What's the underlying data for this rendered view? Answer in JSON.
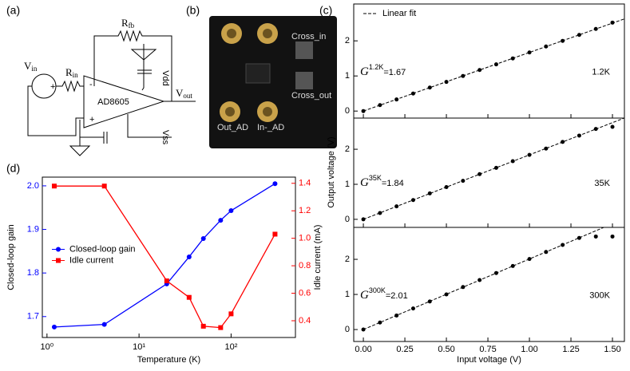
{
  "panels": [
    "(a)",
    "(b)",
    "(c)",
    "(d)"
  ],
  "circuit": {
    "r_fb": {
      "symbol": "R",
      "sub": "fb"
    },
    "v_in": {
      "symbol": "V",
      "sub": "in"
    },
    "r_in": {
      "symbol": "R",
      "sub": "in"
    },
    "opamp": "AD8605",
    "vdd": "Vdd",
    "v_out": {
      "symbol": "V",
      "sub": "out"
    },
    "vss": "Vss",
    "minus": "-",
    "plus": "+"
  },
  "board": {
    "labels": [
      "Cross_in",
      "Cross_out",
      "Out_AD",
      "In-_AD"
    ]
  },
  "chart_data": [
    {
      "type": "line",
      "xscale": "log",
      "xlabel": "Temperature (K)",
      "ylabel": "Closed-loop gain",
      "y2label": "Idle current (mA)",
      "x": [
        1.2,
        4.2,
        20,
        35,
        50,
        77,
        100,
        300
      ],
      "series": [
        {
          "name": "Closed-loop gain",
          "color": "#0000ff",
          "marker": "circle",
          "values": [
            1.676,
            1.682,
            1.775,
            1.837,
            1.879,
            1.921,
            1.943,
            2.005
          ]
        },
        {
          "name": "Idle current",
          "color": "#ff0000",
          "marker": "square",
          "axis": "y2",
          "values": [
            1.38,
            1.38,
            0.69,
            0.57,
            0.36,
            0.35,
            0.45,
            1.03
          ]
        }
      ],
      "xlim": [
        0.89,
        500
      ],
      "xticks": [
        {
          "value": 1,
          "label": "10⁰"
        },
        {
          "value": 10,
          "label": "10¹"
        },
        {
          "value": 100,
          "label": "10²"
        }
      ],
      "ylim": [
        1.652,
        2.02
      ],
      "yticks": [
        1.7,
        1.8,
        1.9,
        {
          "value": 2,
          "label": "2.0"
        }
      ],
      "y2lim": [
        0.278,
        1.445
      ],
      "y2ticks": [
        0.4,
        0.6,
        0.8,
        {
          "value": 1,
          "label": "1.0"
        },
        1.2,
        1.4
      ],
      "legend": "center left"
    },
    {
      "type": "scatter",
      "xlabel": "Input voltage (V)",
      "ylabel": "Output voltage (V)",
      "legend_label": "Linear fit",
      "legend": "upper left",
      "color": "#000000",
      "x": [
        0,
        0.1,
        0.2,
        0.3,
        0.4,
        0.5,
        0.6,
        0.7,
        0.8,
        0.9,
        1.0,
        1.1,
        1.2,
        1.3,
        1.4,
        1.5
      ],
      "xlim": [
        -0.058,
        1.572
      ],
      "xticks": [
        {
          "value": 0,
          "label": "0.00"
        },
        {
          "value": 0.25,
          "label": "0.25"
        },
        {
          "value": 0.5,
          "label": "0.50"
        },
        {
          "value": 0.75,
          "label": "0.75"
        },
        {
          "value": 1,
          "label": "1.00"
        },
        {
          "value": 1.25,
          "label": "1.25"
        },
        {
          "value": 1.5,
          "label": "1.50"
        }
      ],
      "subplots": [
        {
          "label": "1.2K",
          "gain_symbol": "G",
          "gain_sup": "1.2K",
          "fit_slope": 1.67,
          "fit_label": "=1.67",
          "ylim": [
            -0.2,
            3.05
          ],
          "yticks": [
            0,
            1,
            2
          ],
          "values": [
            0,
            0.17,
            0.33,
            0.5,
            0.67,
            0.83,
            1.0,
            1.17,
            1.33,
            1.5,
            1.67,
            1.84,
            2.0,
            2.17,
            2.34,
            2.52
          ]
        },
        {
          "label": "35K",
          "gain_symbol": "G",
          "gain_sup": "35K",
          "fit_slope": 1.84,
          "fit_label": "=1.84",
          "ylim": [
            -0.23,
            2.89
          ],
          "yticks": [
            0,
            1,
            2
          ],
          "values": [
            0,
            0.18,
            0.37,
            0.55,
            0.74,
            0.92,
            1.1,
            1.29,
            1.47,
            1.66,
            1.84,
            2.02,
            2.21,
            2.39,
            2.58,
            2.64
          ]
        },
        {
          "label": "300K",
          "gain_symbol": "G",
          "gain_sup": "300K",
          "fit_slope": 2.01,
          "fit_label": "=2.01",
          "ylim": [
            -0.34,
            2.91
          ],
          "yticks": [
            0,
            1,
            2
          ],
          "values": [
            0,
            0.2,
            0.4,
            0.6,
            0.8,
            1.0,
            1.21,
            1.41,
            1.61,
            1.81,
            2.01,
            2.21,
            2.41,
            2.61,
            2.65,
            2.65
          ]
        }
      ]
    }
  ]
}
